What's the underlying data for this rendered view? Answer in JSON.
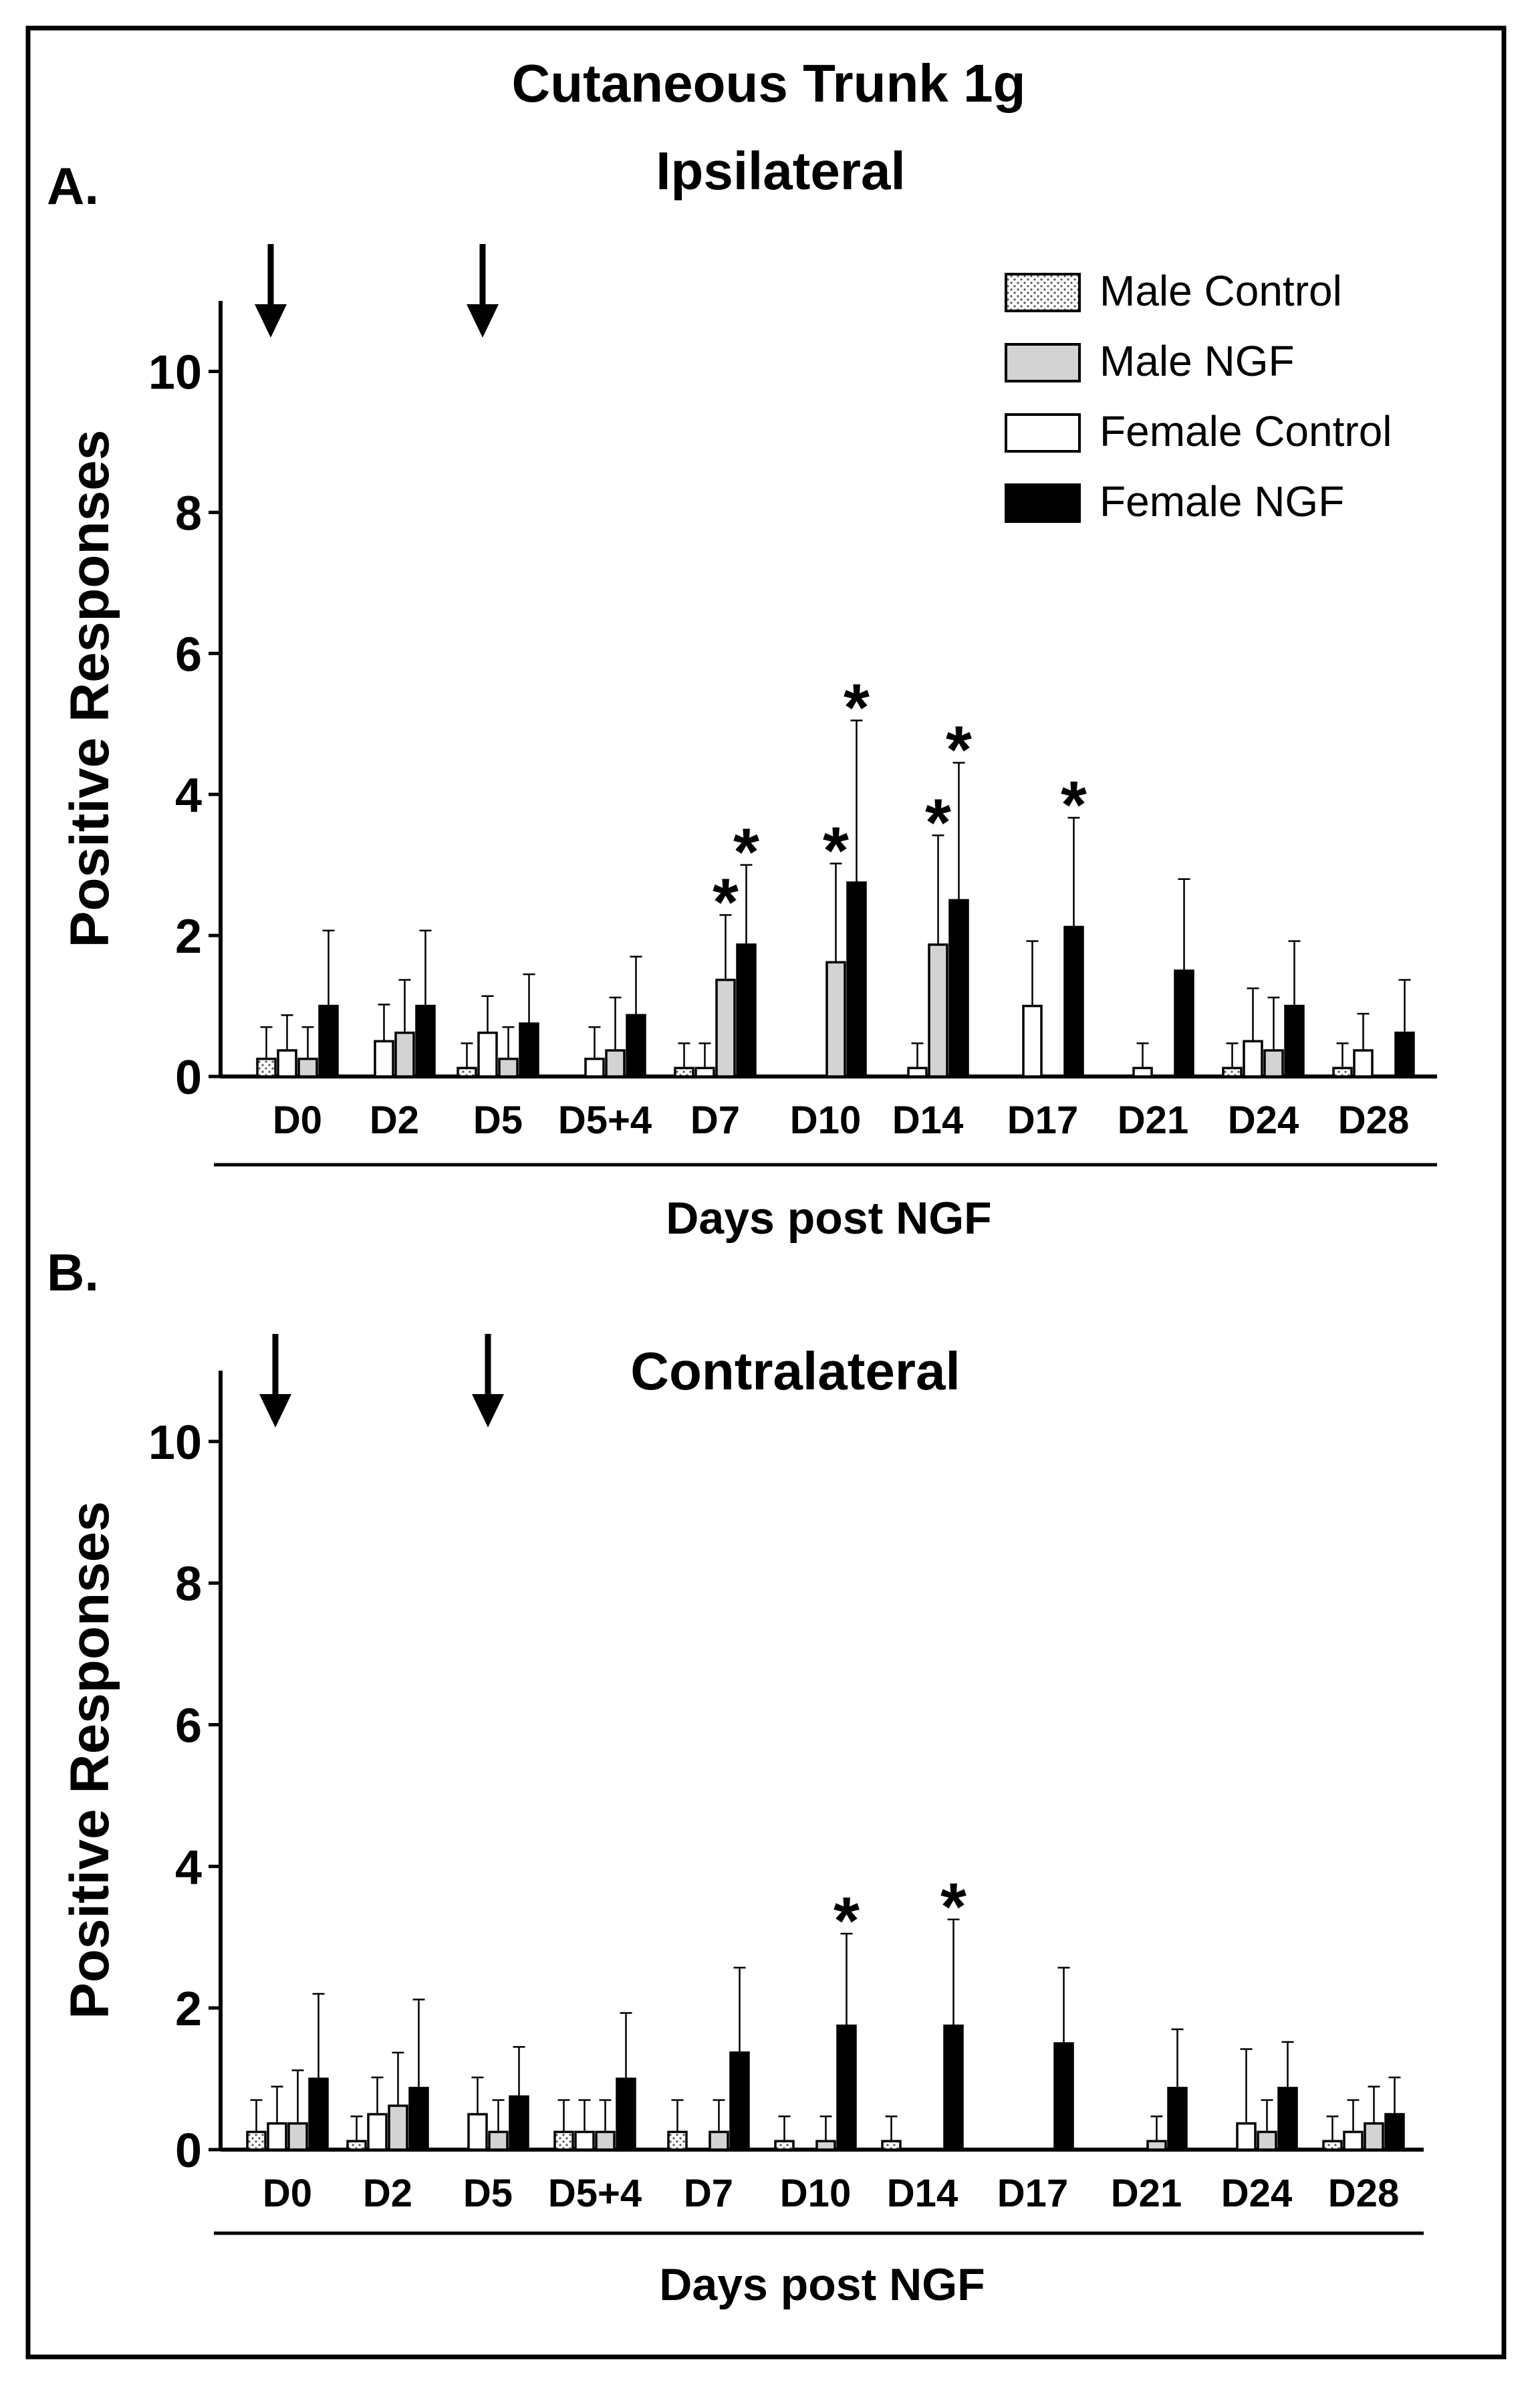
{
  "figure_title": "Cutaneous Trunk 1g",
  "chart_data": [
    {
      "type": "bar",
      "panel_label": "A.",
      "title": "Ipsilateral",
      "xlabel": "Days post NGF",
      "ylabel": "Positive Responses",
      "ylim": [
        0,
        11
      ],
      "yticks": [
        0,
        2,
        4,
        6,
        8,
        10
      ],
      "categories": [
        "D0",
        "D2",
        "D5",
        "D5+4",
        "D7",
        "D10",
        "D14",
        "D17",
        "D21",
        "D24",
        "D28"
      ],
      "arrows_at": [
        "D0",
        "D5"
      ],
      "legend": {
        "position": "top-right",
        "entries": [
          "Male Control",
          "Male NGF",
          "Female Control",
          "Female NGF"
        ]
      },
      "series": [
        {
          "name": "Male Control",
          "color": "#ffffff",
          "pattern": "dotted",
          "values": [
            0.25,
            0,
            0.12,
            0,
            0.12,
            0,
            0,
            0,
            0,
            0.12,
            0.12
          ],
          "errors": [
            0.45,
            0,
            0.35,
            0,
            0.35,
            0,
            0,
            0,
            0,
            0.35,
            0.35
          ]
        },
        {
          "name": "Female Control",
          "color": "#ffffff",
          "values": [
            0.37,
            0.5,
            0.62,
            0.25,
            0.12,
            0,
            0.12,
            1.0,
            0.12,
            0.5,
            0.37
          ],
          "errors": [
            0.5,
            0.52,
            0.52,
            0.45,
            0.35,
            0,
            0.35,
            0.92,
            0.35,
            0.75,
            0.52
          ]
        },
        {
          "name": "Male NGF",
          "color": "#d3d3d3",
          "values": [
            0.25,
            0.62,
            0.25,
            0.37,
            1.37,
            1.62,
            1.87,
            0,
            0,
            0.37,
            0
          ],
          "errors": [
            0.45,
            0.75,
            0.45,
            0.75,
            0.92,
            1.4,
            1.55,
            0,
            0,
            0.75,
            0
          ]
        },
        {
          "name": "Female NGF",
          "color": "#000000",
          "values": [
            1.0,
            1.0,
            0.75,
            0.87,
            1.87,
            2.75,
            2.5,
            2.12,
            1.5,
            1.0,
            0.62
          ],
          "errors": [
            1.07,
            1.07,
            0.7,
            0.83,
            1.13,
            2.3,
            1.95,
            1.55,
            1.3,
            0.92,
            0.75
          ]
        }
      ],
      "significance": [
        {
          "category": "D7",
          "series": "Male NGF",
          "label": "*"
        },
        {
          "category": "D7",
          "series": "Female NGF",
          "label": "*"
        },
        {
          "category": "D10",
          "series": "Male NGF",
          "label": "*"
        },
        {
          "category": "D10",
          "series": "Female NGF",
          "label": "*"
        },
        {
          "category": "D14",
          "series": "Male NGF",
          "label": "*"
        },
        {
          "category": "D14",
          "series": "Female NGF",
          "label": "*"
        },
        {
          "category": "D17",
          "series": "Female NGF",
          "label": "*"
        }
      ]
    },
    {
      "type": "bar",
      "panel_label": "B.",
      "title": "Contralateral",
      "xlabel": "Days post NGF",
      "ylabel": "Positive Responses",
      "ylim": [
        0,
        11
      ],
      "yticks": [
        0,
        2,
        4,
        6,
        8,
        10
      ],
      "categories": [
        "D0",
        "D2",
        "D5",
        "D5+4",
        "D7",
        "D10",
        "D14",
        "D17",
        "D21",
        "D24",
        "D28"
      ],
      "arrows_at": [
        "D0",
        "D5"
      ],
      "series": [
        {
          "name": "Male Control",
          "color": "#ffffff",
          "pattern": "dotted",
          "values": [
            0.25,
            0.12,
            0,
            0.25,
            0.25,
            0.12,
            0.12,
            0,
            0,
            0,
            0.12
          ],
          "errors": [
            0.45,
            0.35,
            0,
            0.45,
            0.45,
            0.35,
            0.35,
            0,
            0,
            0,
            0.35
          ]
        },
        {
          "name": "Female Control",
          "color": "#ffffff",
          "values": [
            0.37,
            0.5,
            0.5,
            0.25,
            0,
            0,
            0,
            0,
            0,
            0.37,
            0.25
          ],
          "errors": [
            0.52,
            0.52,
            0.52,
            0.45,
            0,
            0,
            0,
            0,
            0,
            1.05,
            0.45
          ]
        },
        {
          "name": "Male NGF",
          "color": "#d3d3d3",
          "values": [
            0.37,
            0.62,
            0.25,
            0.25,
            0.25,
            0.12,
            0,
            0,
            0.12,
            0.25,
            0.37
          ],
          "errors": [
            0.75,
            0.75,
            0.45,
            0.45,
            0.45,
            0.35,
            0,
            0,
            0.35,
            0.45,
            0.52
          ]
        },
        {
          "name": "Female NGF",
          "color": "#000000",
          "values": [
            1.0,
            0.87,
            0.75,
            1.0,
            1.37,
            1.75,
            1.75,
            1.5,
            0.87,
            0.87,
            0.5
          ],
          "errors": [
            1.2,
            1.25,
            0.7,
            0.93,
            1.2,
            1.3,
            1.5,
            1.07,
            0.83,
            0.65,
            0.52
          ]
        }
      ],
      "significance": [
        {
          "category": "D10",
          "series": "Female NGF",
          "label": "*"
        },
        {
          "category": "D14",
          "series": "Female NGF",
          "label": "*"
        }
      ]
    }
  ]
}
